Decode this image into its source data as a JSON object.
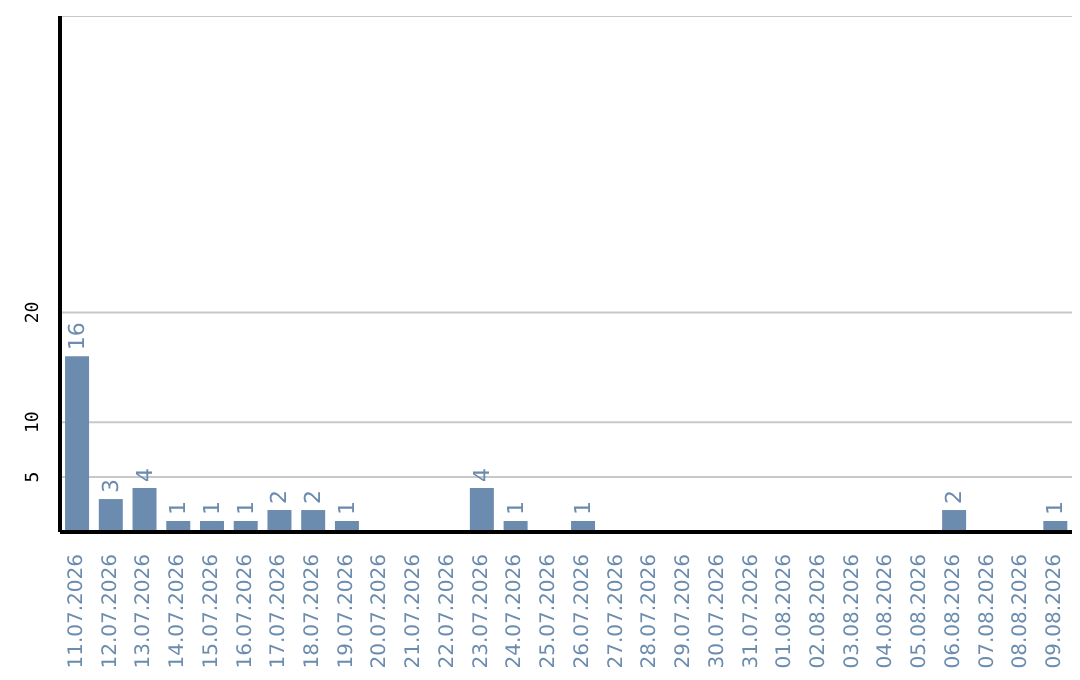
{
  "chart_data": {
    "type": "bar",
    "categories": [
      "11.07.2026",
      "12.07.2026",
      "13.07.2026",
      "14.07.2026",
      "15.07.2026",
      "16.07.2026",
      "17.07.2026",
      "18.07.2026",
      "19.07.2026",
      "20.07.2026",
      "21.07.2026",
      "22.07.2026",
      "23.07.2026",
      "24.07.2026",
      "25.07.2026",
      "26.07.2026",
      "27.07.2026",
      "28.07.2026",
      "29.07.2026",
      "30.07.2026",
      "31.07.2026",
      "01.08.2026",
      "02.08.2026",
      "03.08.2026",
      "04.08.2026",
      "05.08.2026",
      "06.08.2026",
      "07.08.2026",
      "08.08.2026",
      "09.08.2026"
    ],
    "values": [
      16,
      3,
      4,
      1,
      1,
      1,
      2,
      2,
      1,
      0,
      0,
      0,
      4,
      1,
      0,
      1,
      0,
      0,
      0,
      0,
      0,
      0,
      0,
      0,
      0,
      0,
      2,
      0,
      0,
      1
    ],
    "value_labels": [
      "16",
      "3",
      "4",
      "1",
      "1",
      "1",
      "2",
      "2",
      "1",
      null,
      null,
      null,
      "4",
      "1",
      null,
      "1",
      null,
      null,
      null,
      null,
      null,
      null,
      null,
      null,
      null,
      null,
      "2",
      null,
      null,
      "1"
    ],
    "color": "#6b8cae",
    "ylim": [
      0,
      47
    ],
    "yticks": [
      5,
      10,
      20
    ],
    "grid": "y"
  }
}
